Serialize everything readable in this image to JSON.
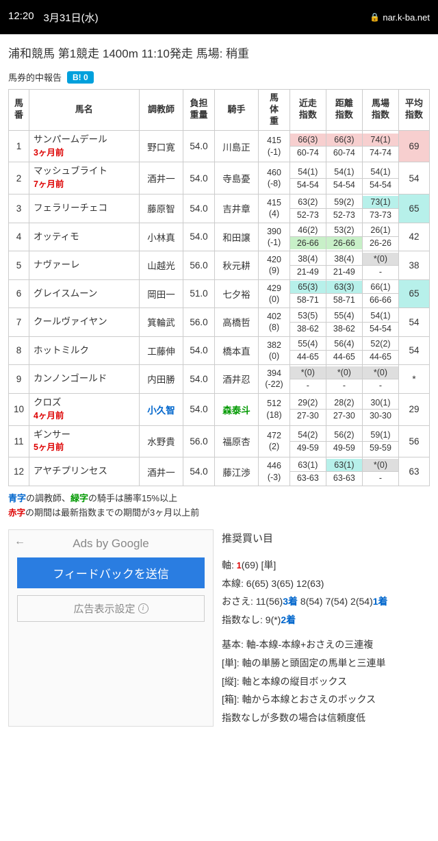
{
  "status": {
    "time": "12:20",
    "date": "3月31日(水)",
    "url": "nar.k-ba.net"
  },
  "race_title": "浦和競馬 第1競走 1400m 11:10発走 馬場: 稍重",
  "report_label": "馬券的中報告",
  "b_badge": "B! 0",
  "headers": [
    "馬番",
    "馬名",
    "調教師",
    "負担重量",
    "騎手",
    "馬体重",
    "近走指数",
    "距離指数",
    "馬場指数",
    "平均指数"
  ],
  "horses": [
    {
      "num": "1",
      "name": "サンパームデール",
      "note": "3ヶ月前",
      "trainer": "野口寛",
      "t_cls": "",
      "wt": "54.0",
      "jockey": "川島正",
      "j_cls": "",
      "bw": "415",
      "bw_d": "(-1)",
      "idx": [
        {
          "t": "66(3)",
          "b": "60-74",
          "tc": "hl-pink"
        },
        {
          "t": "66(3)",
          "b": "60-74",
          "tc": "hl-pink"
        },
        {
          "t": "74(1)",
          "b": "74-74",
          "tc": "hl-pink"
        }
      ],
      "avg": "69",
      "avg_cls": "hl-pink"
    },
    {
      "num": "2",
      "name": "マッシュブライト",
      "note": "7ヶ月前",
      "trainer": "酒井一",
      "t_cls": "",
      "wt": "54.0",
      "jockey": "寺島憂",
      "j_cls": "",
      "bw": "460",
      "bw_d": "(-8)",
      "idx": [
        {
          "t": "54(1)",
          "b": "54-54"
        },
        {
          "t": "54(1)",
          "b": "54-54"
        },
        {
          "t": "54(1)",
          "b": "54-54"
        }
      ],
      "avg": "54",
      "avg_cls": ""
    },
    {
      "num": "3",
      "name": "フェラリーチェコ",
      "note": "",
      "trainer": "藤原智",
      "t_cls": "",
      "wt": "54.0",
      "jockey": "吉井章",
      "j_cls": "",
      "bw": "415",
      "bw_d": "(4)",
      "idx": [
        {
          "t": "63(2)",
          "b": "52-73"
        },
        {
          "t": "59(2)",
          "b": "52-73"
        },
        {
          "t": "73(1)",
          "b": "73-73",
          "tc": "hl-cyan"
        }
      ],
      "avg": "65",
      "avg_cls": "hl-cyan"
    },
    {
      "num": "4",
      "name": "オッティモ",
      "note": "",
      "trainer": "小林真",
      "t_cls": "",
      "wt": "54.0",
      "jockey": "和田譲",
      "j_cls": "",
      "bw": "390",
      "bw_d": "(-1)",
      "idx": [
        {
          "t": "46(2)",
          "b": "26-66",
          "bc": "hl-lgreen"
        },
        {
          "t": "53(2)",
          "b": "26-66",
          "bc": "hl-lgreen"
        },
        {
          "t": "26(1)",
          "b": "26-26"
        }
      ],
      "avg": "42",
      "avg_cls": ""
    },
    {
      "num": "5",
      "name": "ナヴァーレ",
      "note": "",
      "trainer": "山越光",
      "t_cls": "",
      "wt": "56.0",
      "jockey": "秋元耕",
      "j_cls": "",
      "bw": "420",
      "bw_d": "(9)",
      "idx": [
        {
          "t": "38(4)",
          "b": "21-49"
        },
        {
          "t": "38(4)",
          "b": "21-49"
        },
        {
          "t": "*(0)",
          "b": "-",
          "tc": "hl-grey"
        }
      ],
      "avg": "38",
      "avg_cls": ""
    },
    {
      "num": "6",
      "name": "グレイスムーン",
      "note": "",
      "trainer": "岡田一",
      "t_cls": "",
      "wt": "51.0",
      "jockey": "七夕裕",
      "j_cls": "",
      "bw": "429",
      "bw_d": "(0)",
      "idx": [
        {
          "t": "65(3)",
          "b": "58-71",
          "tc": "hl-cyan"
        },
        {
          "t": "63(3)",
          "b": "58-71",
          "tc": "hl-cyan"
        },
        {
          "t": "66(1)",
          "b": "66-66"
        }
      ],
      "avg": "65",
      "avg_cls": "hl-cyan"
    },
    {
      "num": "7",
      "name": "クールヴァイヤン",
      "note": "",
      "trainer": "箕輪武",
      "t_cls": "",
      "wt": "56.0",
      "jockey": "高橋哲",
      "j_cls": "",
      "bw": "402",
      "bw_d": "(8)",
      "idx": [
        {
          "t": "53(5)",
          "b": "38-62"
        },
        {
          "t": "55(4)",
          "b": "38-62"
        },
        {
          "t": "54(1)",
          "b": "54-54"
        }
      ],
      "avg": "54",
      "avg_cls": ""
    },
    {
      "num": "8",
      "name": "ホットミルク",
      "note": "",
      "trainer": "工藤伸",
      "t_cls": "",
      "wt": "54.0",
      "jockey": "橋本直",
      "j_cls": "",
      "bw": "382",
      "bw_d": "(0)",
      "idx": [
        {
          "t": "55(4)",
          "b": "44-65"
        },
        {
          "t": "56(4)",
          "b": "44-65"
        },
        {
          "t": "52(2)",
          "b": "44-65"
        }
      ],
      "avg": "54",
      "avg_cls": ""
    },
    {
      "num": "9",
      "name": "カンノンゴールド",
      "note": "",
      "trainer": "内田勝",
      "t_cls": "",
      "wt": "54.0",
      "jockey": "酒井忍",
      "j_cls": "",
      "bw": "394",
      "bw_d": "(-22)",
      "idx": [
        {
          "t": "*(0)",
          "b": "-",
          "tc": "hl-grey"
        },
        {
          "t": "*(0)",
          "b": "-",
          "tc": "hl-grey"
        },
        {
          "t": "*(0)",
          "b": "-",
          "tc": "hl-grey"
        }
      ],
      "avg": "*",
      "avg_cls": ""
    },
    {
      "num": "10",
      "name": "クロズ",
      "note": "4ヶ月前",
      "trainer": "小久智",
      "t_cls": "blue-text",
      "wt": "54.0",
      "jockey": "森泰斗",
      "j_cls": "green-text",
      "bw": "512",
      "bw_d": "(18)",
      "idx": [
        {
          "t": "29(2)",
          "b": "27-30"
        },
        {
          "t": "28(2)",
          "b": "27-30"
        },
        {
          "t": "30(1)",
          "b": "30-30"
        }
      ],
      "avg": "29",
      "avg_cls": ""
    },
    {
      "num": "11",
      "name": "ギンサー",
      "note": "5ヶ月前",
      "trainer": "水野貴",
      "t_cls": "",
      "wt": "56.0",
      "jockey": "福原杏",
      "j_cls": "",
      "bw": "472",
      "bw_d": "(2)",
      "idx": [
        {
          "t": "54(2)",
          "b": "49-59"
        },
        {
          "t": "56(2)",
          "b": "49-59"
        },
        {
          "t": "59(1)",
          "b": "59-59"
        }
      ],
      "avg": "56",
      "avg_cls": ""
    },
    {
      "num": "12",
      "name": "アヤチプリンセス",
      "note": "",
      "trainer": "酒井一",
      "t_cls": "",
      "wt": "54.0",
      "jockey": "藤江渉",
      "j_cls": "",
      "bw": "446",
      "bw_d": "(-3)",
      "idx": [
        {
          "t": "63(1)",
          "b": "63-63"
        },
        {
          "t": "63(1)",
          "b": "63-63",
          "tc": "hl-cyan"
        },
        {
          "t": "*(0)",
          "b": "-",
          "tc": "hl-grey"
        }
      ],
      "avg": "63",
      "avg_cls": ""
    }
  ],
  "legend": {
    "l1a": "青字",
    "l1b": "の調教師、",
    "l1c": "緑字",
    "l1d": "の騎手は勝率15%以上",
    "l2a": "赤字",
    "l2b": "の期間は最新指数までの期間が3ヶ月以上前"
  },
  "ads": {
    "title": "Ads by Google",
    "feedback": "フィードバックを送信",
    "settings": "広告表示設定"
  },
  "rec": {
    "title": "推奨買い目",
    "axis_pfx": "軸: ",
    "axis_num": "1",
    "axis_rest": "(69) [単]",
    "main": "本線: 6(65) 3(65) 12(63)",
    "osae_pfx": "おさえ: 11(56)",
    "osae_b1": "3着",
    "osae_mid": " 8(54) 7(54) 2(54)",
    "osae_b2": "1着",
    "none_pfx": "指数なし: 9(*)",
    "none_b": "2着",
    "b1": "基本: 軸-本線-本線+おさえの三連複",
    "b2": "[単]: 軸の単勝と頭固定の馬単と三連単",
    "b3": "[縦]: 軸と本線の縦目ボックス",
    "b4": "[箱]: 軸から本線とおさえのボックス",
    "b5": "指数なしが多数の場合は信頼度低"
  }
}
